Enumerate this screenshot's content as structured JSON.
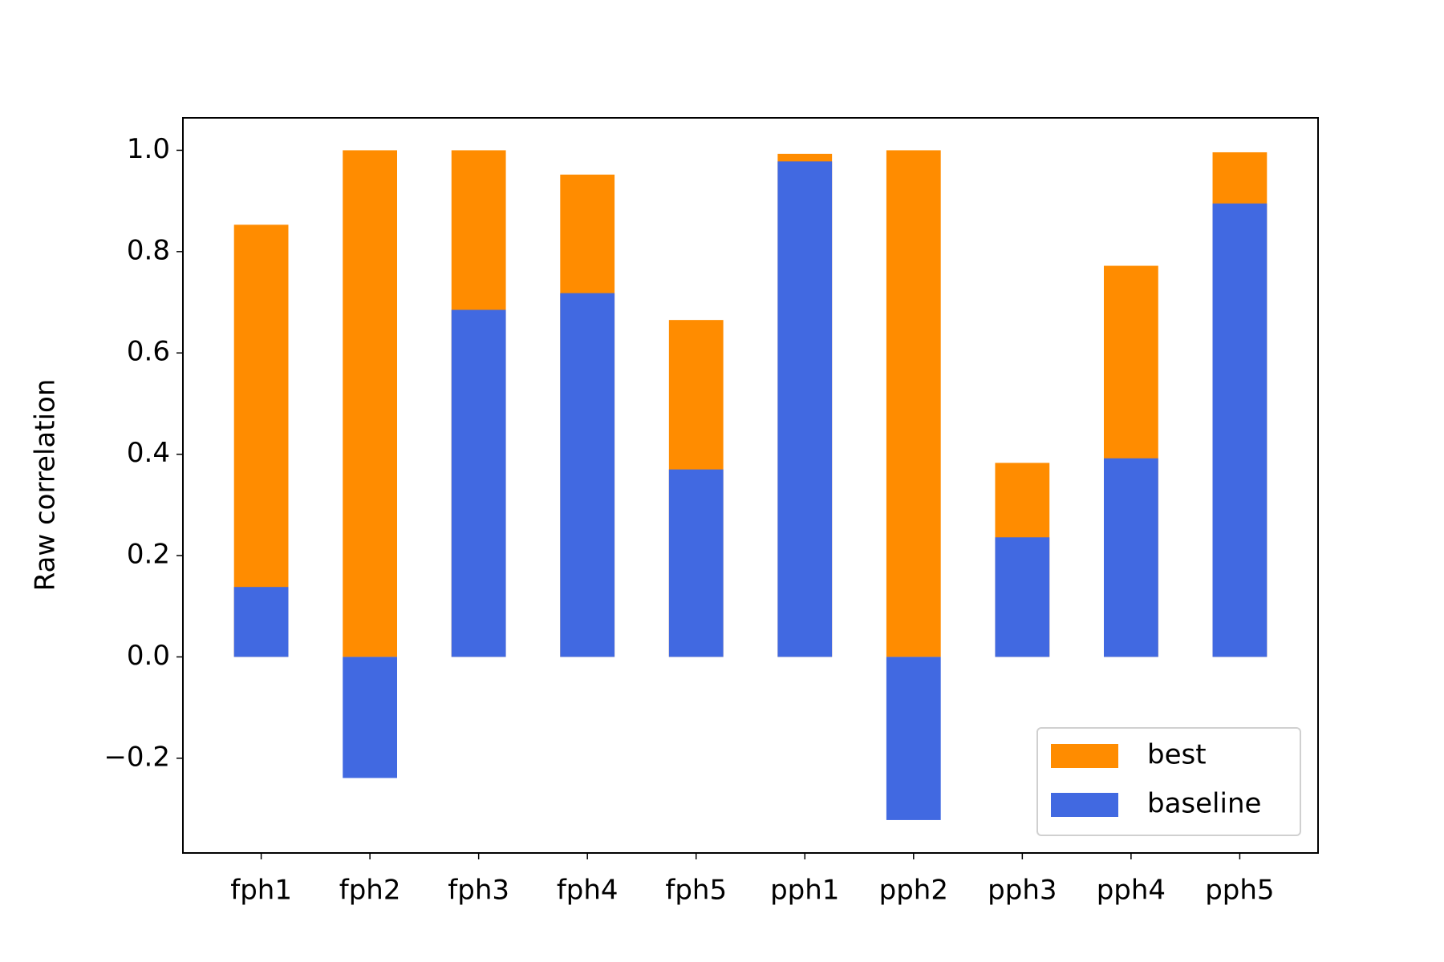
{
  "chart_data": {
    "type": "bar",
    "ylabel": "Raw correlation",
    "categories": [
      "fph1",
      "fph2",
      "fph3",
      "fph4",
      "fph5",
      "pph1",
      "pph2",
      "pph3",
      "pph4",
      "pph5"
    ],
    "series": [
      {
        "name": "best",
        "color": "#ff8c00",
        "values": [
          0.853,
          1.0,
          1.0,
          0.952,
          0.665,
          0.993,
          1.0,
          0.383,
          0.772,
          0.996
        ]
      },
      {
        "name": "baseline",
        "color": "#4169e1",
        "values": [
          0.138,
          -0.239,
          0.685,
          0.718,
          0.37,
          0.978,
          -0.322,
          0.236,
          0.392,
          0.895
        ]
      }
    ],
    "ylim": [
      -0.387,
      1.064
    ],
    "yticks": [
      {
        "value": -0.2,
        "label": "−0.2"
      },
      {
        "value": 0,
        "label": "0.0"
      },
      0.2,
      0.4,
      0.6,
      0.8,
      {
        "value": 1,
        "label": "1.0"
      }
    ],
    "grid": false,
    "legend": "lower right"
  }
}
